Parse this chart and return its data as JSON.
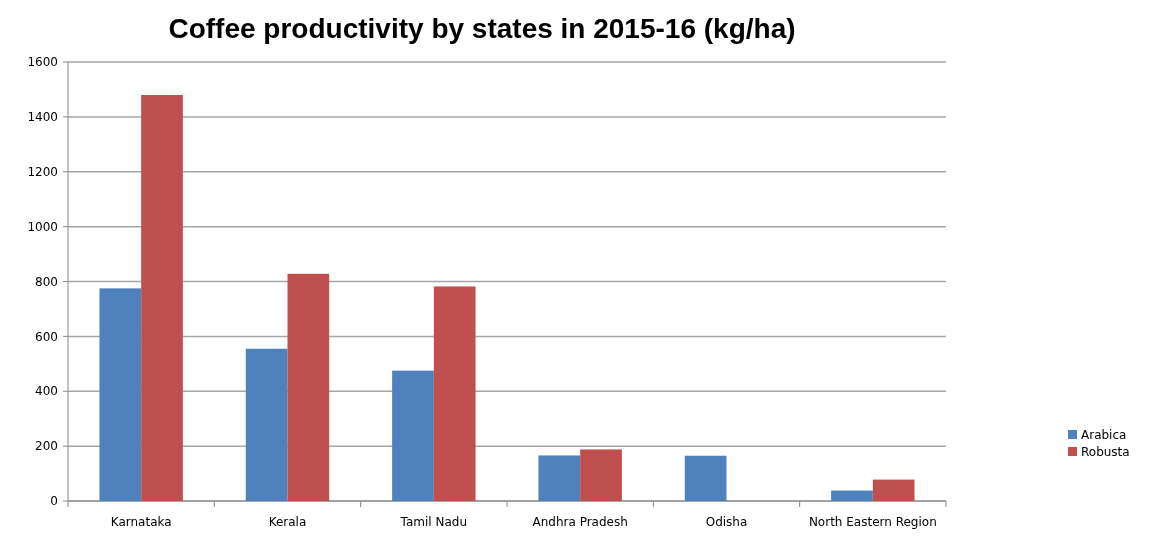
{
  "chart_data": {
    "type": "bar",
    "title": "Coffee productivity by states in 2015-16 (kg/ha)",
    "categories": [
      "Karnataka",
      "Kerala",
      "Tamil Nadu",
      "Andhra Pradesh",
      "Odisha",
      "North Eastern Region"
    ],
    "series": [
      {
        "name": "Arabica",
        "color": "#4f81bd",
        "values": [
          775,
          555,
          475,
          166,
          165,
          38
        ]
      },
      {
        "name": "Robusta",
        "color": "#c0504d",
        "values": [
          1480,
          828,
          782,
          188,
          null,
          78
        ]
      }
    ],
    "ylim": [
      0,
      1600
    ],
    "yticks": [
      0,
      200,
      400,
      600,
      800,
      1000,
      1200,
      1400,
      1600
    ],
    "grid": "y",
    "legend": "right"
  }
}
